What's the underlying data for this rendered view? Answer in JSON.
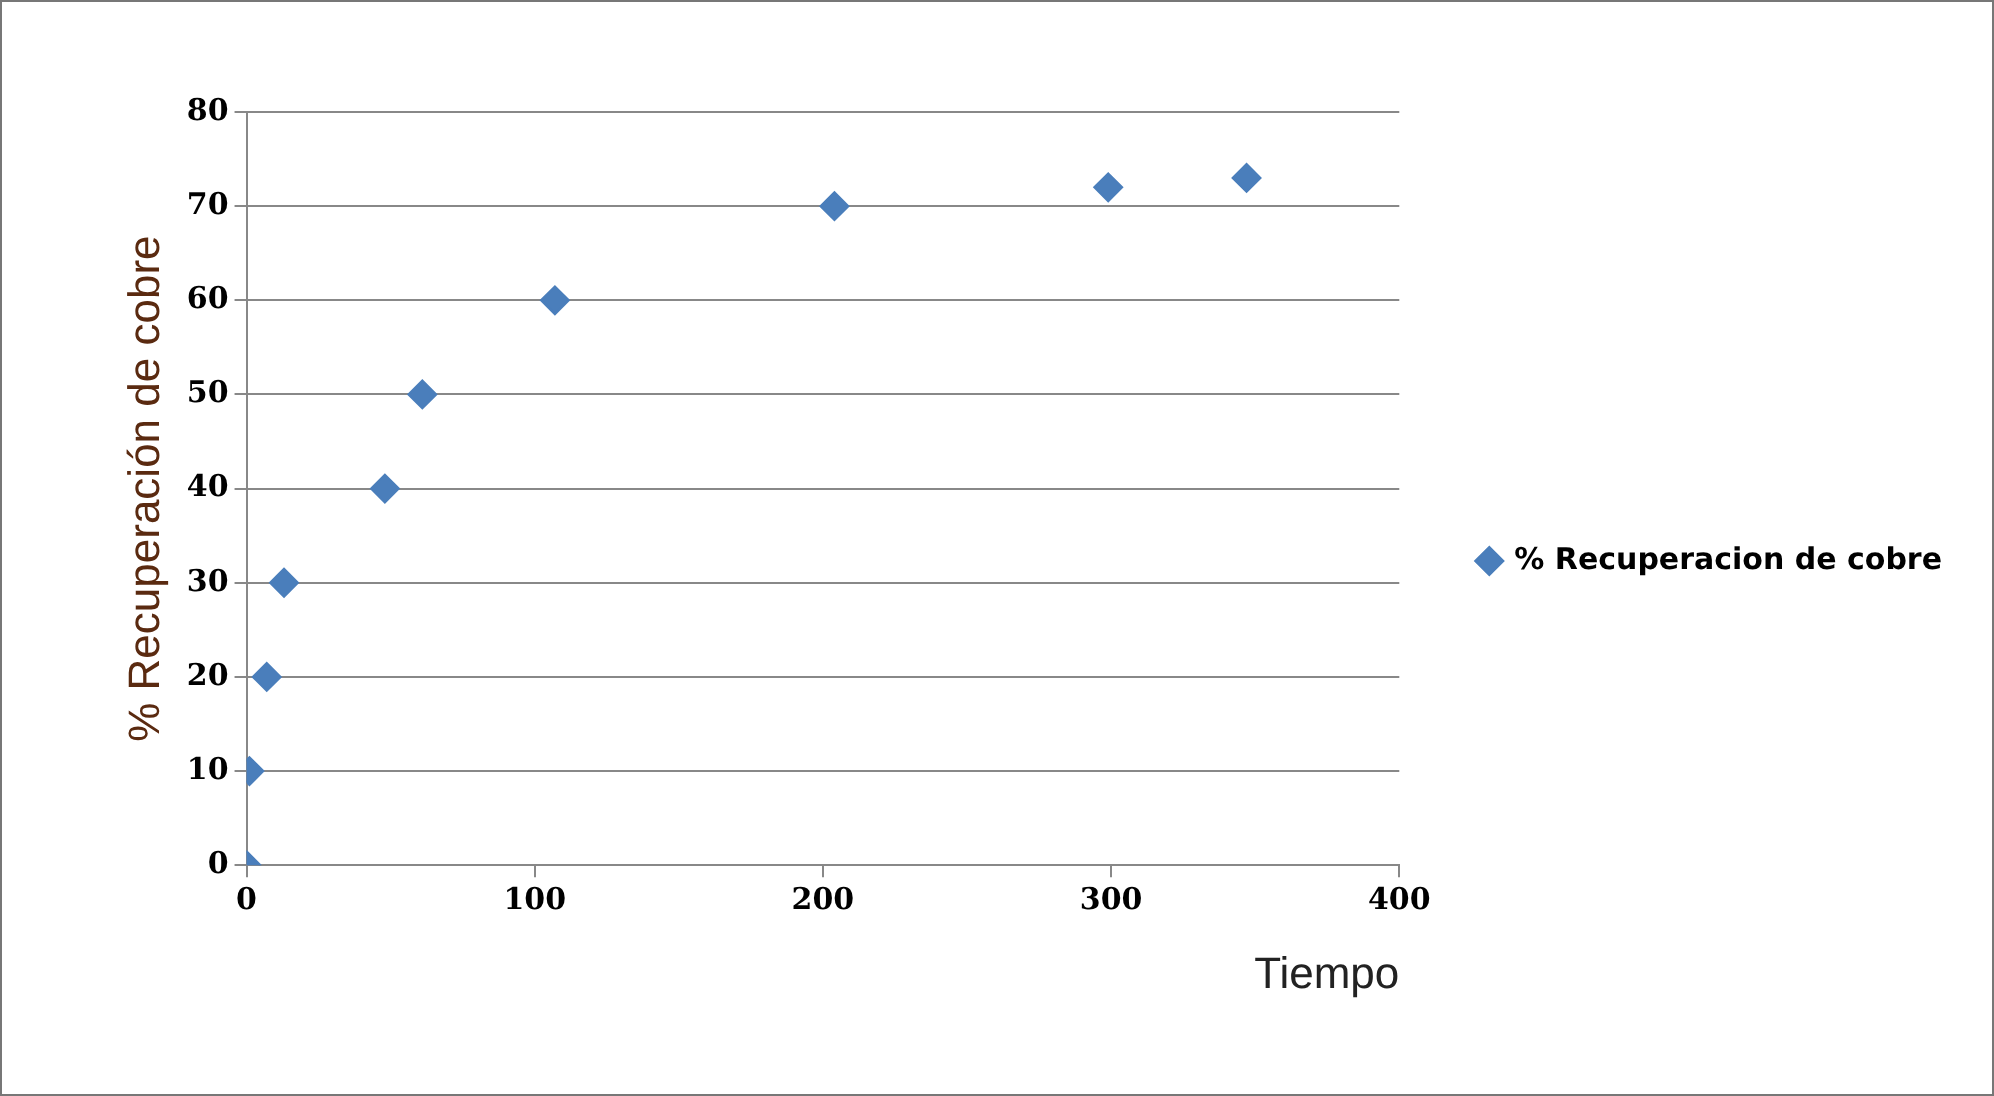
{
  "chart_data": {
    "type": "scatter",
    "xlabel": "Tiempo",
    "ylabel": "% Recuperación de cobre",
    "x": [
      0,
      1,
      7,
      13,
      48,
      61,
      107,
      204,
      299,
      347
    ],
    "series": [
      {
        "name": "% Recuperacion de cobre",
        "color": "#4a7ebb",
        "values": [
          0,
          10,
          20,
          30,
          40,
          50,
          60,
          70,
          72,
          73
        ]
      }
    ],
    "xlim": [
      0,
      400
    ],
    "xticks": [
      0,
      100,
      200,
      300,
      400
    ],
    "ylim": [
      0,
      80
    ],
    "yticks": [
      0,
      10,
      20,
      30,
      40,
      50,
      60,
      70,
      80
    ],
    "grid": "y",
    "legend": "right",
    "marker": "diamond"
  }
}
